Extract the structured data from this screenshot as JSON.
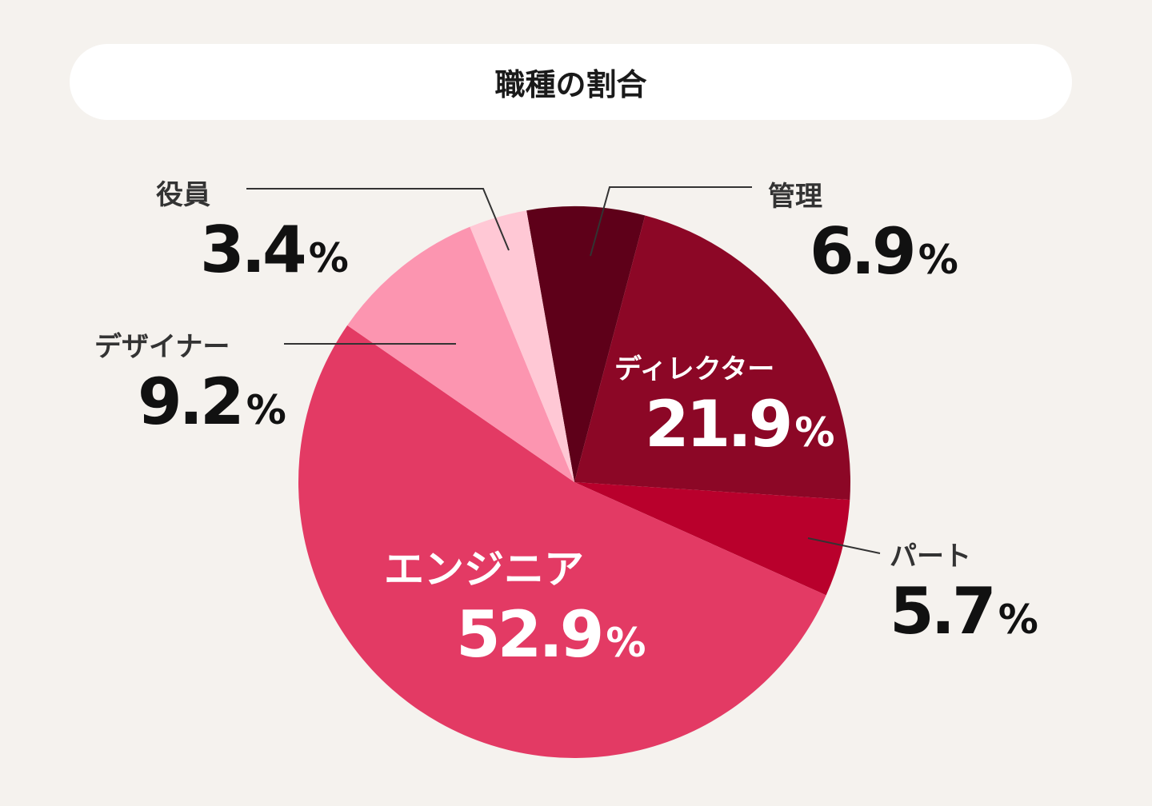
{
  "chart_data": {
    "type": "pie",
    "title": "職種の割合",
    "unit": "%",
    "start_angle_deg": -10,
    "slices": [
      {
        "label": "管理",
        "value": 6.9,
        "color": "#5e0019"
      },
      {
        "label": "ディレクター",
        "value": 21.9,
        "color": "#8c0726"
      },
      {
        "label": "パート",
        "value": 5.7,
        "color": "#b9002c"
      },
      {
        "label": "エンジニア",
        "value": 52.9,
        "color": "#e33a64"
      },
      {
        "label": "デザイナー",
        "value": 9.2,
        "color": "#fc95b0"
      },
      {
        "label": "役員",
        "value": 3.4,
        "color": "#ffc8d5"
      }
    ]
  }
}
